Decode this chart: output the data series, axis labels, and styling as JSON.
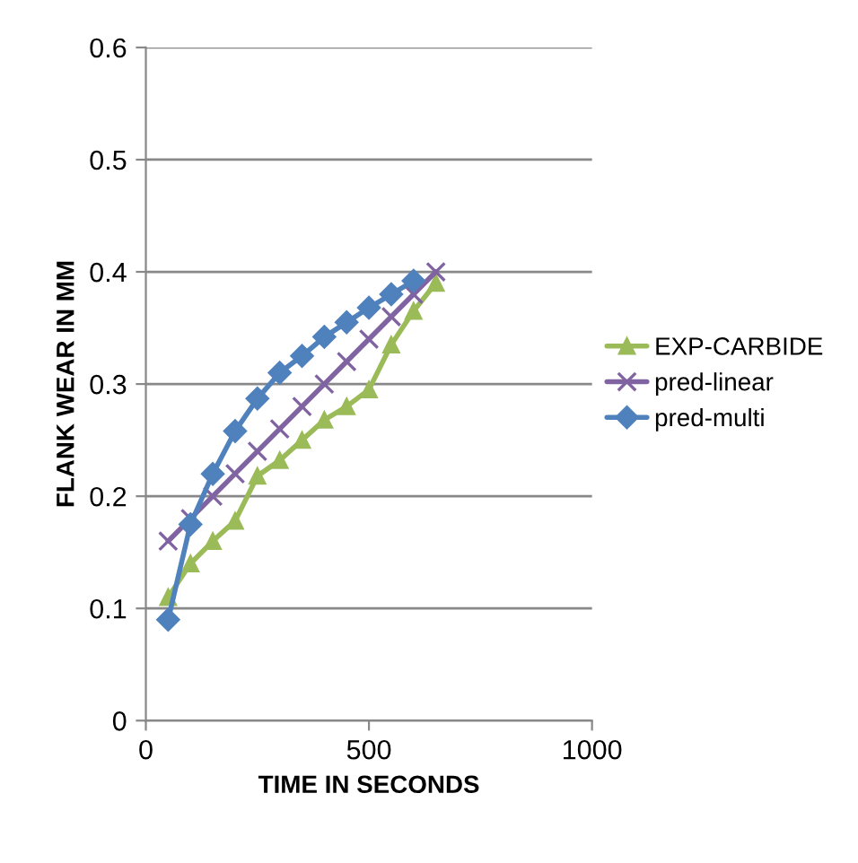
{
  "chart_data": {
    "type": "line",
    "xlabel": "TIME IN SECONDS",
    "ylabel": "FLANK WEAR IN MM",
    "xlim": [
      0,
      1000
    ],
    "xticks": [
      0,
      500,
      1000
    ],
    "ylim": [
      0,
      0.6
    ],
    "yticks": [
      0,
      0.1,
      0.2,
      0.3,
      0.4,
      0.5,
      0.6
    ],
    "grid": "y",
    "legend": "right",
    "series": [
      {
        "name": "EXP-CARBIDE",
        "color": "#9bbb59",
        "marker": "triangle",
        "x": [
          50,
          100,
          150,
          200,
          250,
          300,
          350,
          400,
          450,
          500,
          550,
          600,
          650
        ],
        "values": [
          0.11,
          0.14,
          0.16,
          0.178,
          0.218,
          0.232,
          0.25,
          0.268,
          0.28,
          0.295,
          0.335,
          0.365,
          0.39
        ]
      },
      {
        "name": "pred-linear",
        "color": "#8064a2",
        "marker": "cross",
        "x": [
          50,
          100,
          150,
          200,
          250,
          300,
          350,
          400,
          450,
          500,
          550,
          600,
          650
        ],
        "values": [
          0.16,
          0.18,
          0.2,
          0.22,
          0.24,
          0.26,
          0.28,
          0.3,
          0.32,
          0.34,
          0.36,
          0.38,
          0.4
        ]
      },
      {
        "name": "pred-multi",
        "color": "#4f81bd",
        "marker": "diamond",
        "x": [
          50,
          100,
          150,
          200,
          250,
          300,
          350,
          400,
          450,
          500,
          550,
          600
        ],
        "values": [
          0.09,
          0.175,
          0.22,
          0.258,
          0.287,
          0.31,
          0.325,
          0.342,
          0.355,
          0.368,
          0.38,
          0.392
        ]
      }
    ]
  }
}
